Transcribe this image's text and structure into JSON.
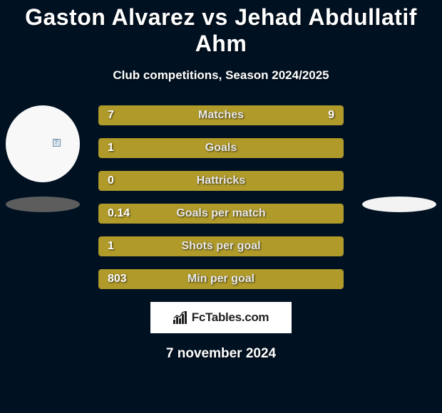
{
  "title": "Gaston Alvarez vs Jehad Abdullatif Ahm",
  "subtitle": "Club competitions, Season 2024/2025",
  "date": "7 november 2024",
  "colors": {
    "background": "#001122",
    "bar_fill": "#b09a2a",
    "bar_border": "#b09a2a",
    "bar_empty": "#001122",
    "text": "#ffffff",
    "shadow_left": "#5d5d5d",
    "shadow_right": "#f3f3f3",
    "watermark_bg": "#ffffff",
    "watermark_text": "#1a1a1a"
  },
  "typography": {
    "title_fontsize": 32,
    "subtitle_fontsize": 17,
    "bar_label_fontsize": 16,
    "date_fontsize": 19
  },
  "bars": [
    {
      "label": "Matches",
      "left_val": "7",
      "right_val": "9",
      "left_pct": 43.75,
      "right_pct": 56.25,
      "show_right_val": true
    },
    {
      "label": "Goals",
      "left_val": "1",
      "right_val": "",
      "left_pct": 100,
      "right_pct": 0,
      "show_right_val": false
    },
    {
      "label": "Hattricks",
      "left_val": "0",
      "right_val": "",
      "left_pct": 100,
      "right_pct": 0,
      "show_right_val": false
    },
    {
      "label": "Goals per match",
      "left_val": "0.14",
      "right_val": "",
      "left_pct": 100,
      "right_pct": 0,
      "show_right_val": false
    },
    {
      "label": "Shots per goal",
      "left_val": "1",
      "right_val": "",
      "left_pct": 100,
      "right_pct": 0,
      "show_right_val": false
    },
    {
      "label": "Min per goal",
      "left_val": "803",
      "right_val": "",
      "left_pct": 100,
      "right_pct": 0,
      "show_right_val": false
    }
  ],
  "watermark": "FcTables.com"
}
